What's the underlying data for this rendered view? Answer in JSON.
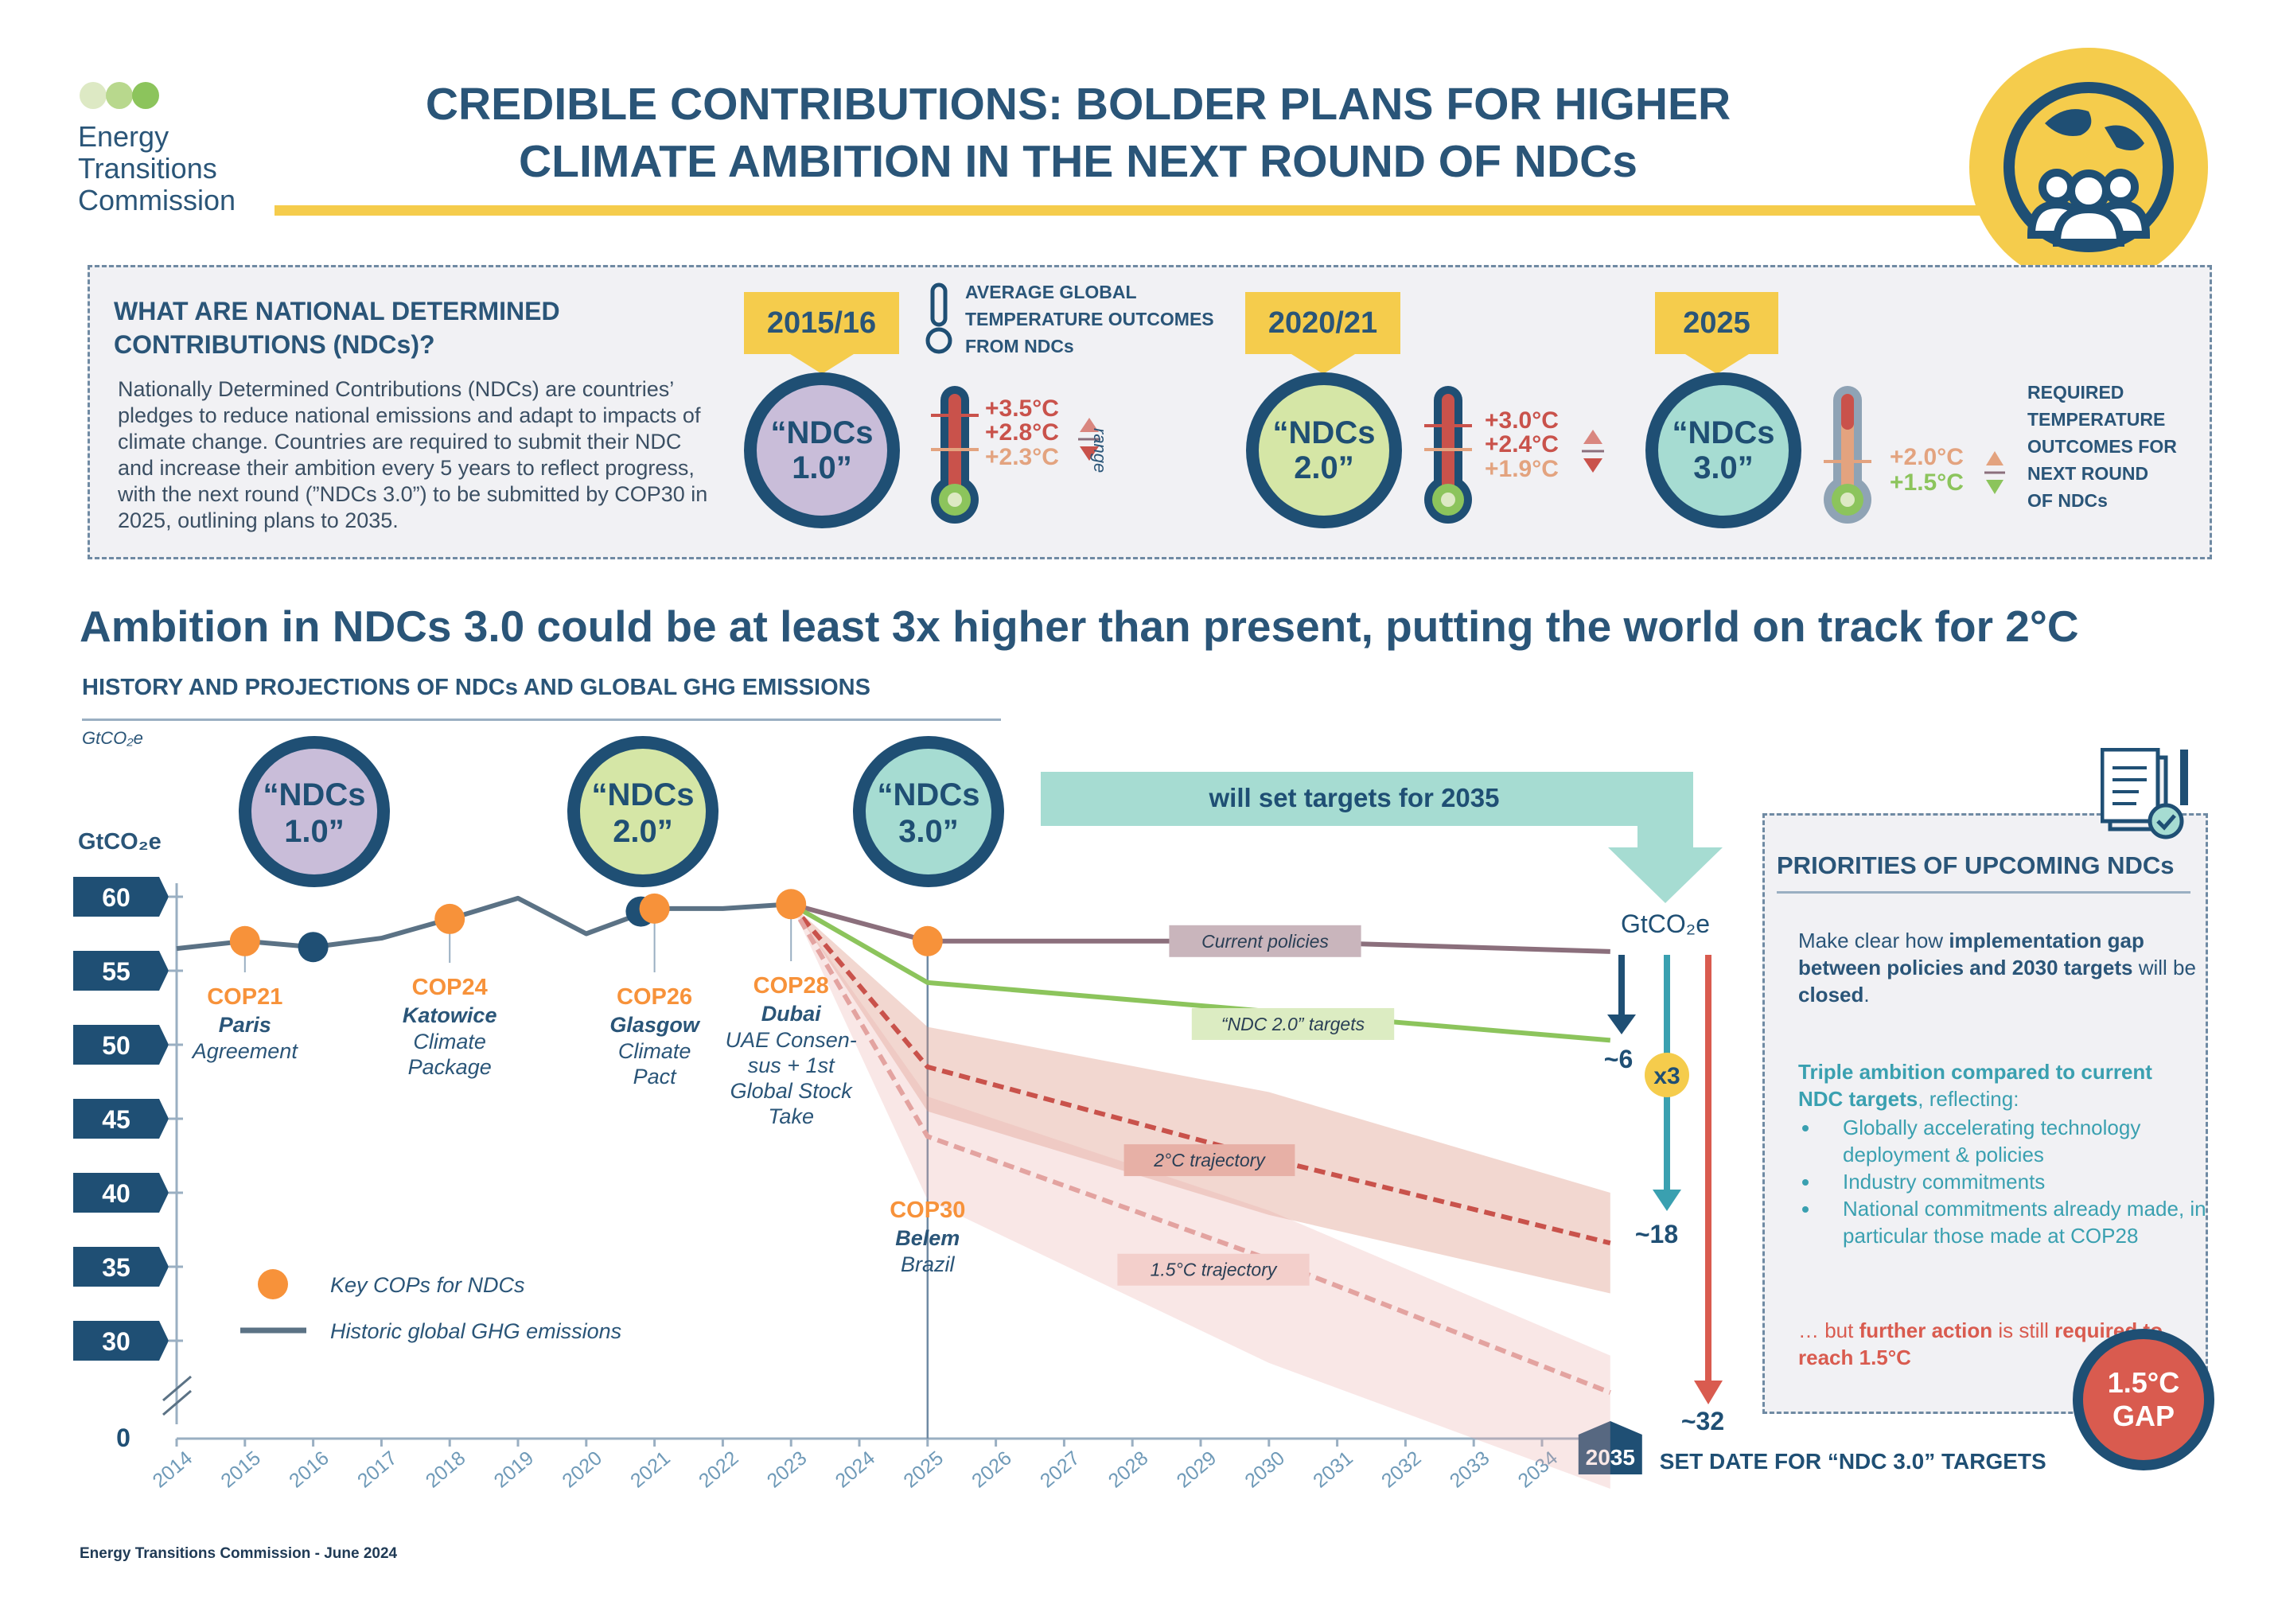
{
  "logo": {
    "org_line1": "Energy",
    "org_line2": "Transitions",
    "org_line3": "Commission"
  },
  "title": {
    "line1": "CREDIBLE CONTRIBUTIONS: BOLDER PLANS FOR HIGHER",
    "line2": "CLIMATE AMBITION IN THE NEXT ROUND OF NDCs"
  },
  "info": {
    "heading": "WHAT ARE NATIONAL DETERMINED CONTRIBUTIONS (NDCs)?",
    "paragraph": "Nationally Determined Contributions (NDCs) are countries’ pledges to reduce national emissions and adapt to impacts of climate change. Countries are required to submit their NDC and increase their ambition every 5 years to reflect progress, with the next round (”NDCs 3.0”) to be submitted by COP30 in 2025, outlining plans to 2035.",
    "avg_temp_label_1": "AVERAGE GLOBAL",
    "avg_temp_label_2": "TEMPERATURE OUTCOMES",
    "avg_temp_label_3": "FROM NDCs",
    "range_label": "range",
    "required_label_1": "REQUIRED",
    "required_label_2": "TEMPERATURE",
    "required_label_3": "OUTCOMES FOR",
    "required_label_4": "NEXT ROUND",
    "required_label_5": "OF NDCs",
    "rounds": [
      {
        "year": "2015/16",
        "ndc_line1": "“NDCs",
        "ndc_line2": "1.0”",
        "high": "+3.5°C",
        "mid": "+2.8°C",
        "low": "+2.3°C",
        "fill": "#c9bdd9"
      },
      {
        "year": "2020/21",
        "ndc_line1": "“NDCs",
        "ndc_line2": "2.0”",
        "high": "+3.0°C",
        "mid": "+2.4°C",
        "low": "+1.9°C",
        "fill": "#d5e6a6"
      },
      {
        "year": "2025",
        "ndc_line1": "“NDCs",
        "ndc_line2": "3.0”",
        "high": "+2.0°C",
        "low": "+1.5°C",
        "fill": "#a6dcd2"
      }
    ]
  },
  "headline": "Ambition in NDCs 3.0 could be at least 3x higher than present, putting the world on track for 2°C",
  "subhead": "HISTORY AND PROJECTIONS OF NDCs AND GLOBAL GHG EMISSIONS",
  "chart_data": {
    "type": "line",
    "unit_label_top": "GtCO₂e",
    "ylabel": "GtCO₂e",
    "yticks": [
      60,
      55,
      50,
      45,
      40,
      35,
      30
    ],
    "y_zero_label": "0",
    "ylim": [
      30,
      60
    ],
    "xticks": [
      "2014",
      "2015",
      "2016",
      "2017",
      "2018",
      "2019",
      "2020",
      "2021",
      "2022",
      "2023",
      "2024",
      "2025",
      "2026",
      "2027",
      "2028",
      "2029",
      "2030",
      "2031",
      "2032",
      "2033",
      "2034"
    ],
    "x_end_label": "2035",
    "x_end_caption": "SET DATE FOR “NDC 3.0” TARGETS",
    "series": [
      {
        "name": "Historic global GHG emissions",
        "color": "#5b7285",
        "x": [
          2014,
          2015,
          2016,
          2017,
          2018,
          2019,
          2020,
          2021,
          2022,
          2023
        ],
        "y": [
          56.5,
          57.0,
          56.6,
          57.2,
          58.5,
          59.9,
          57.5,
          59.2,
          59.2,
          59.5
        ]
      },
      {
        "name": "Current policies",
        "color": "#8b6f7c",
        "x": [
          2023,
          2025,
          2030,
          2035
        ],
        "y": [
          59.5,
          57.0,
          57.0,
          56.3
        ]
      },
      {
        "name": "“NDC 2.0” targets",
        "color": "#8cc45c",
        "x": [
          2023,
          2025,
          2035
        ],
        "y": [
          59.5,
          54.2,
          50.3
        ]
      },
      {
        "name": "2°C trajectory",
        "color": "#c9524b",
        "dashed": true,
        "x": [
          2023,
          2025,
          2030,
          2035
        ],
        "y": [
          59.5,
          48.5,
          42.3,
          36.6
        ],
        "band_upper": [
          59.5,
          51.2,
          46.8,
          40.0
        ],
        "band_lower": [
          59.5,
          45.5,
          38.5,
          33.2
        ]
      },
      {
        "name": "1.5°C trajectory",
        "color": "#e3a3a0",
        "dashed": true,
        "x": [
          2023,
          2025,
          2030,
          2035
        ],
        "y": [
          59.5,
          43.8,
          35.5,
          26.5
        ],
        "band_upper": [
          59.5,
          46.5,
          38.8,
          29.0
        ],
        "band_lower": [
          59.5,
          39.5,
          28.5,
          20.0
        ]
      }
    ],
    "cops": [
      {
        "name": "COP21",
        "place": "Paris",
        "sub": "Agreement",
        "x": 2015,
        "y": 57.0
      },
      {
        "name": "COP24",
        "place": "Katowice",
        "sub": "Climate Package",
        "x": 2018,
        "y": 58.5
      },
      {
        "name": "COP26",
        "place": "Glasgow",
        "sub": "Climate Pact",
        "x": 2021,
        "y": 59.2
      },
      {
        "name": "COP28",
        "place": "Dubai",
        "sub": "UAE Consensus + 1st Global Stock Take",
        "x": 2023,
        "y": 59.5
      },
      {
        "name": "COP30",
        "place": "Belem",
        "sub": "Brazil",
        "x": 2025,
        "y": 57.0
      }
    ],
    "navy_points": [
      {
        "x": 2016,
        "y": 56.6
      },
      {
        "x": 2020.8,
        "y": 59.0
      }
    ],
    "ndc_bubbles": [
      {
        "line1": "“NDCs",
        "line2": "1.0”",
        "fill": "#c9bdd9"
      },
      {
        "line1": "“NDCs",
        "line2": "2.0”",
        "fill": "#d5e6a6"
      },
      {
        "line1": "“NDCs",
        "line2": "3.0”",
        "fill": "#a6dcd2"
      }
    ],
    "targets_banner": "will set targets for 2035",
    "reductions": {
      "unit": "GtCO₂e",
      "r1": "~6",
      "r2": "~18",
      "r3": "~32",
      "multiplier": "x3"
    },
    "legend": {
      "cop_label": "Key COPs for NDCs",
      "line_label": "Historic global GHG emissions",
      "placement": "bottom-left"
    },
    "colors": {
      "cop": "#f7923a",
      "navy": "#1f4f74"
    }
  },
  "priorities": {
    "title": "PRIORITIES OF UPCOMING NDCs",
    "p1_a": "Make clear how ",
    "p1_b": "implementation gap between policies and 2030 targets",
    "p1_c": " will be ",
    "p1_d": "closed",
    "p2_a": "Triple ambition compared to current NDC targets",
    "p2_b": ", reflecting:",
    "bullets": [
      "Globally accelerating technology deployment & policies",
      "Industry commitments",
      "National commitments already made, in particular those made at COP28"
    ],
    "p3_a": "… but ",
    "p3_b": "further action",
    "p3_c": " is still ",
    "p3_d": "required to reach 1.5°C",
    "gap_line1": "1.5°C",
    "gap_line2": "GAP"
  },
  "footer": "Energy Transitions Commission - June 2024"
}
